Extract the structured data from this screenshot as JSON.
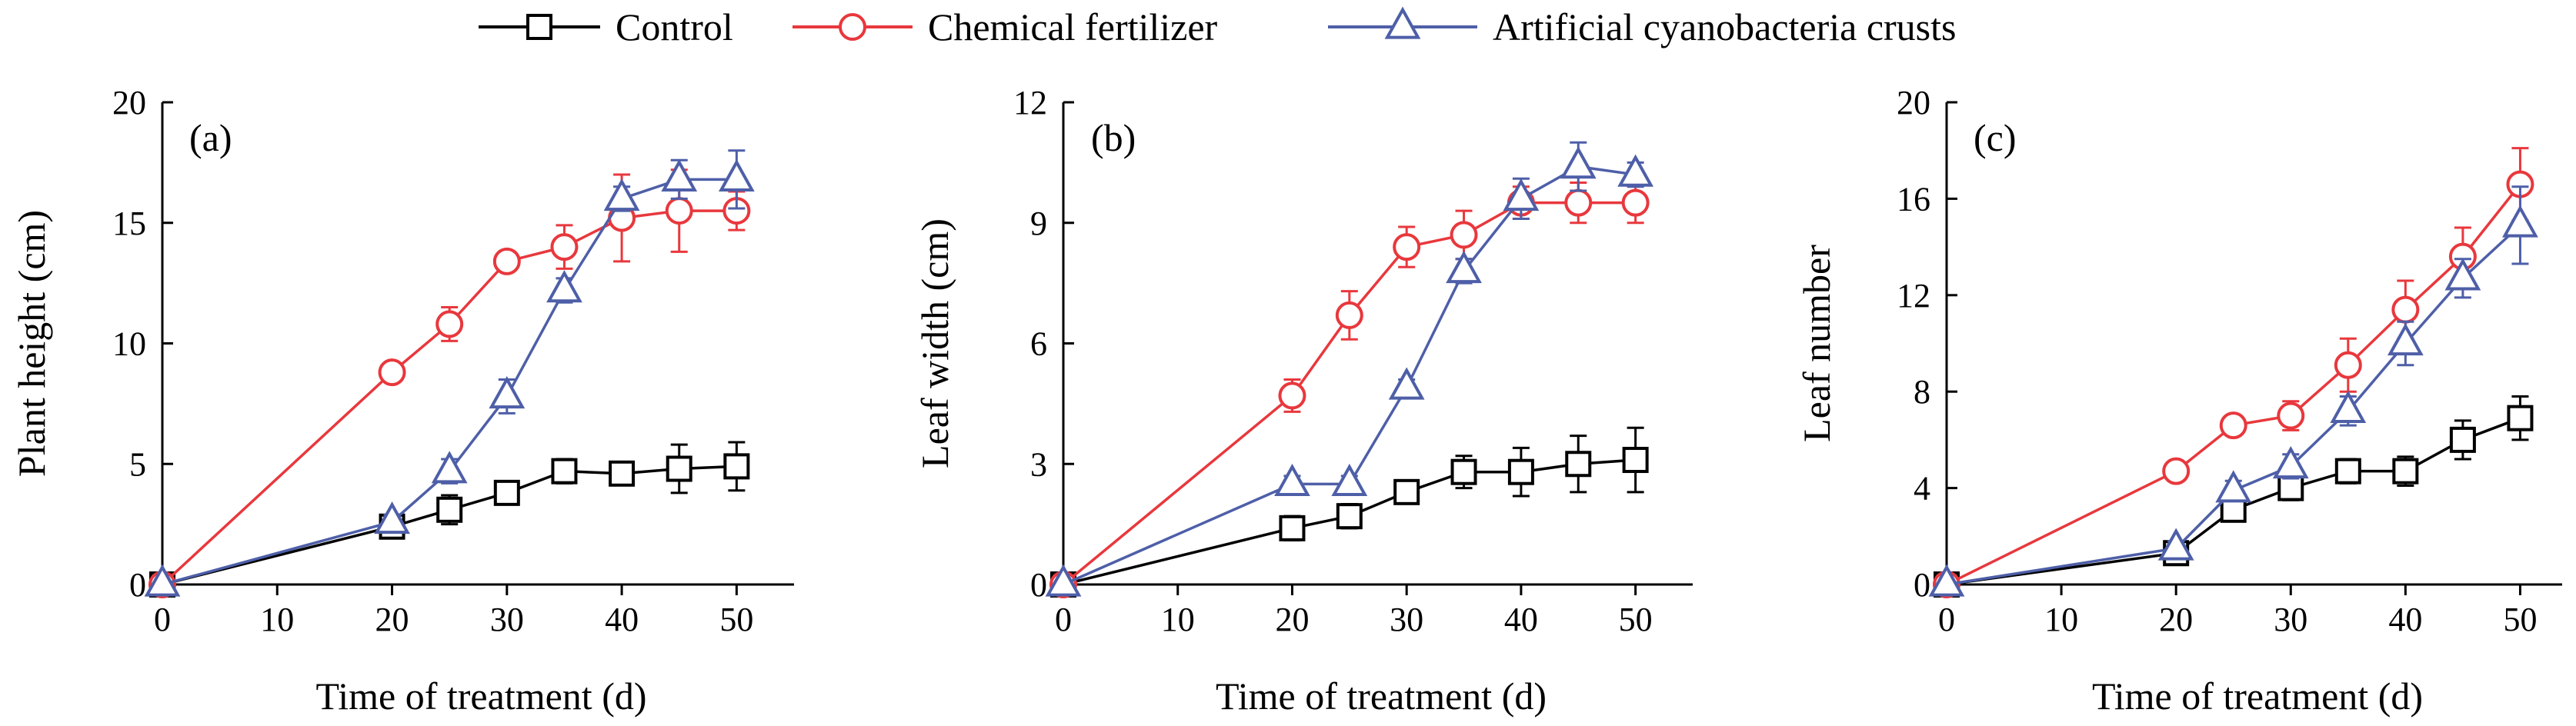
{
  "legend": [
    {
      "label": "Control",
      "color": "#000000",
      "marker": "square"
    },
    {
      "label": "Chemical fertilizer",
      "color": "#e8383d",
      "marker": "circle"
    },
    {
      "label": "Artificial cyanobacteria crusts",
      "color": "#4e5fa8",
      "marker": "triangle"
    }
  ],
  "chart_data": [
    {
      "type": "line",
      "panel_label": "(a)",
      "xlabel": "Time of treatment (d)",
      "ylabel": "Plant height (cm)",
      "xlim": [
        0,
        55
      ],
      "ylim": [
        0,
        20
      ],
      "xticks": [
        "0",
        "10",
        "20",
        "30",
        "40",
        "50"
      ],
      "yticks": [
        "0",
        "5",
        "10",
        "15",
        "20"
      ],
      "grid": false,
      "series": [
        {
          "name": "Control",
          "color": "#000000",
          "marker": "square",
          "x": [
            0,
            20,
            25,
            30,
            35,
            40,
            45,
            50
          ],
          "y": [
            0,
            2.4,
            3.1,
            3.8,
            4.7,
            4.6,
            4.8,
            4.9
          ],
          "err": [
            0,
            0.4,
            0.6,
            0.4,
            0.5,
            0.3,
            1.0,
            1.0
          ]
        },
        {
          "name": "Chemical fertilizer",
          "color": "#e8383d",
          "marker": "circle",
          "x": [
            0,
            20,
            25,
            30,
            35,
            40,
            45,
            50
          ],
          "y": [
            0,
            8.8,
            10.8,
            13.4,
            14.0,
            15.2,
            15.5,
            15.5
          ],
          "err": [
            0,
            0.3,
            0.7,
            0.4,
            0.9,
            1.8,
            1.7,
            0.8
          ]
        },
        {
          "name": "Artificial cyanobacteria crusts",
          "color": "#4e5fa8",
          "marker": "triangle",
          "x": [
            0,
            20,
            25,
            30,
            35,
            40,
            45,
            50
          ],
          "y": [
            0,
            2.6,
            4.7,
            7.8,
            12.2,
            16.0,
            16.8,
            16.8
          ],
          "err": [
            0,
            0.3,
            0.5,
            0.7,
            0.5,
            0.5,
            0.8,
            1.2
          ]
        }
      ]
    },
    {
      "type": "line",
      "panel_label": "(b)",
      "xlabel": "Time of treatment (d)",
      "ylabel": "Leaf width (cm)",
      "xlim": [
        0,
        55
      ],
      "ylim": [
        0,
        12
      ],
      "xticks": [
        "0",
        "10",
        "20",
        "30",
        "40",
        "50"
      ],
      "yticks": [
        "0",
        "3",
        "6",
        "9",
        "12"
      ],
      "grid": false,
      "series": [
        {
          "name": "Control",
          "color": "#000000",
          "marker": "square",
          "x": [
            0,
            20,
            25,
            30,
            35,
            40,
            45,
            50
          ],
          "y": [
            0,
            1.4,
            1.7,
            2.3,
            2.8,
            2.8,
            3.0,
            3.1
          ],
          "err": [
            0,
            0.3,
            0.3,
            0.2,
            0.4,
            0.6,
            0.7,
            0.8
          ]
        },
        {
          "name": "Chemical fertilizer",
          "color": "#e8383d",
          "marker": "circle",
          "x": [
            0,
            20,
            25,
            30,
            35,
            40,
            45,
            50
          ],
          "y": [
            0,
            4.7,
            6.7,
            8.4,
            8.7,
            9.5,
            9.5,
            9.5
          ],
          "err": [
            0,
            0.4,
            0.6,
            0.5,
            0.6,
            0.4,
            0.5,
            0.5
          ]
        },
        {
          "name": "Artificial cyanobacteria crusts",
          "color": "#4e5fa8",
          "marker": "triangle",
          "x": [
            0,
            20,
            25,
            30,
            35,
            40,
            45,
            50
          ],
          "y": [
            0,
            2.5,
            2.5,
            4.9,
            7.8,
            9.6,
            10.4,
            10.2
          ],
          "err": [
            0,
            0.2,
            0.2,
            0.2,
            0.3,
            0.5,
            0.6,
            0.3
          ]
        }
      ]
    },
    {
      "type": "line",
      "panel_label": "(c)",
      "xlabel": "Time of treatment (d)",
      "ylabel": "Leaf number",
      "xlim": [
        0,
        55
      ],
      "ylim": [
        0,
        20
      ],
      "xticks": [
        "0",
        "10",
        "20",
        "30",
        "40",
        "50"
      ],
      "yticks": [
        "0",
        "4",
        "8",
        "12",
        "16",
        "20"
      ],
      "grid": false,
      "series": [
        {
          "name": "Control",
          "color": "#000000",
          "marker": "square",
          "x": [
            0,
            20,
            25,
            30,
            35,
            40,
            45,
            50
          ],
          "y": [
            0,
            1.3,
            3.1,
            4.0,
            4.7,
            4.7,
            6.0,
            6.9
          ],
          "err": [
            0,
            0.3,
            0.4,
            0.5,
            0.5,
            0.6,
            0.8,
            0.9
          ]
        },
        {
          "name": "Chemical fertilizer",
          "color": "#e8383d",
          "marker": "circle",
          "x": [
            0,
            20,
            25,
            30,
            35,
            40,
            45,
            50
          ],
          "y": [
            0,
            4.7,
            6.6,
            7.0,
            9.1,
            11.4,
            13.6,
            16.6
          ],
          "err": [
            0,
            0.3,
            0.4,
            0.6,
            1.1,
            1.2,
            1.2,
            1.5
          ]
        },
        {
          "name": "Artificial cyanobacteria crusts",
          "color": "#4e5fa8",
          "marker": "triangle",
          "x": [
            0,
            20,
            25,
            30,
            35,
            40,
            45,
            50
          ],
          "y": [
            0,
            1.5,
            3.9,
            4.9,
            7.2,
            10.0,
            12.7,
            14.9
          ],
          "err": [
            0,
            0.3,
            0.4,
            0.5,
            0.6,
            0.9,
            0.8,
            1.6
          ]
        }
      ]
    }
  ]
}
